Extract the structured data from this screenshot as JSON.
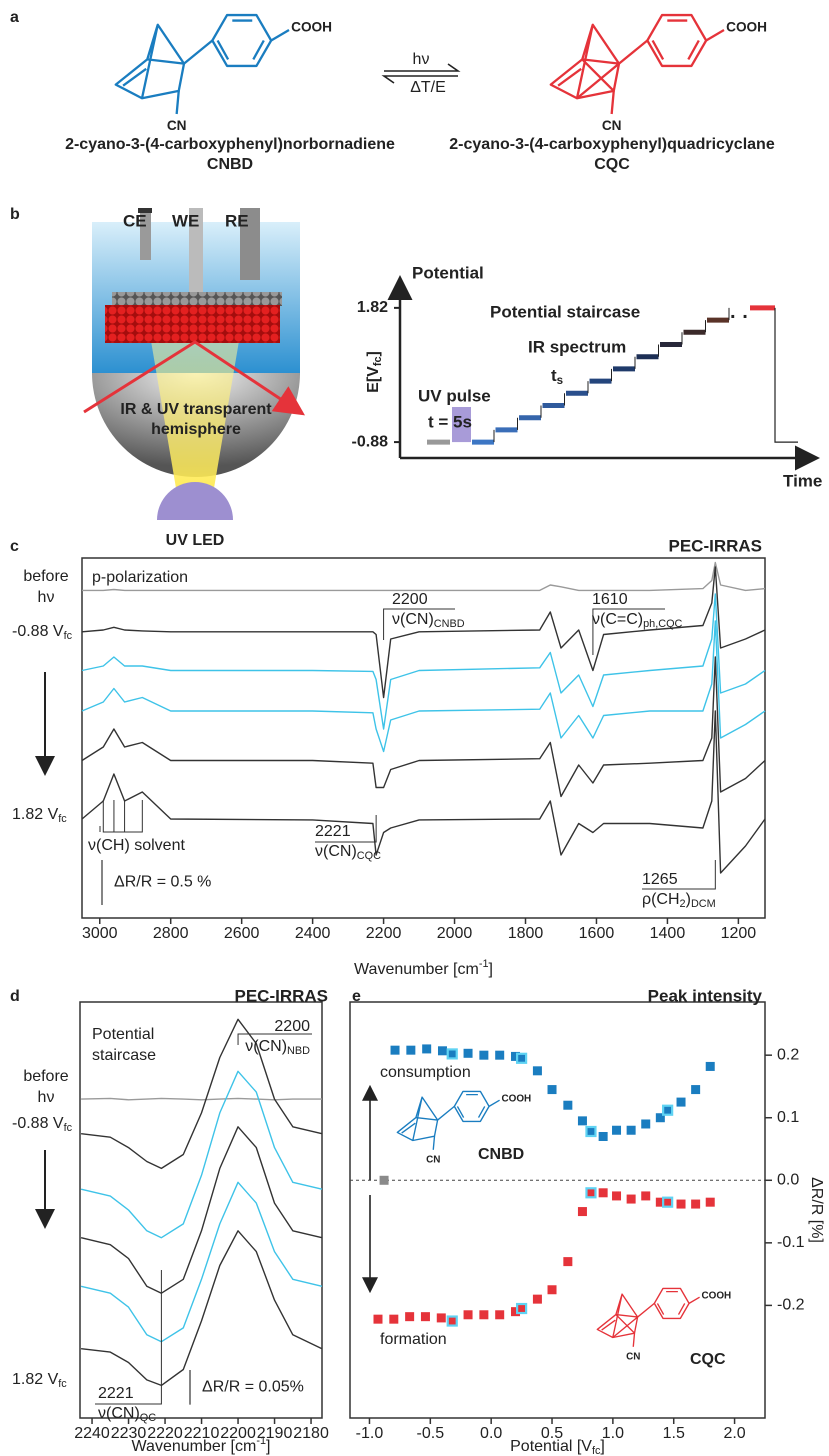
{
  "panel_a": {
    "label": "a",
    "left": {
      "cooh": "COOH",
      "cn": "CN",
      "name": "2-cyano-3-(4-carboxyphenyl)norbornadiene",
      "abbr": "CNBD"
    },
    "right": {
      "cooh": "COOH",
      "cn": "CN",
      "name": "2-cyano-3-(4-carboxyphenyl)quadricyclane",
      "abbr": "CQC"
    },
    "forward": "hν",
    "backward": "ΔT/E"
  },
  "panel_b": {
    "label": "b",
    "electrodes": [
      "CE",
      "WE",
      "RE"
    ],
    "hemisphere": [
      "IR & UV transparent",
      "hemisphere"
    ],
    "led": "UV LED"
  },
  "chart_data": [
    {
      "type": "staircase",
      "y_title": "Potential",
      "ylabel": [
        {
          "t": "E[V"
        },
        {
          "sub": "fc"
        },
        {
          "t": "]"
        }
      ],
      "xlabel": "Time",
      "ylim": [
        -1.2,
        2.28
      ],
      "yticks": [
        -0.88,
        1.82
      ],
      "annotations": {
        "staircase": "Potential staircase",
        "ir": "IR spectrum",
        "uv": "UV pulse",
        "duration": "t = 5s",
        "step": [
          {
            "t": "t"
          },
          {
            "sub": "s"
          }
        ]
      }
    },
    {
      "type": "line",
      "label": "c",
      "title": "PEC-IRRAS",
      "note": "p-polarization",
      "xlabel": [
        {
          "t": "Wavenumber [cm"
        },
        {
          "sup": "-1"
        },
        {
          "t": "]"
        }
      ],
      "x": [
        3050,
        2990,
        2960,
        2930,
        2880,
        2800,
        2400,
        2230,
        2221,
        2200,
        2180,
        2100,
        1760,
        1730,
        1700,
        1650,
        1610,
        1580,
        1450,
        1300,
        1275,
        1265,
        1250,
        1180,
        1125
      ],
      "xlim": [
        3050,
        1125
      ],
      "xticks": [
        3000,
        2800,
        2600,
        2400,
        2200,
        2000,
        1800,
        1600,
        1400,
        1200
      ],
      "ylim": [
        0,
        4
      ],
      "series": [
        {
          "color": "#9a9a9a",
          "values": [
            3.64,
            3.64,
            3.65,
            3.64,
            3.64,
            3.64,
            3.64,
            3.64,
            3.64,
            3.64,
            3.64,
            3.64,
            3.64,
            3.7,
            3.68,
            3.64,
            3.64,
            3.64,
            3.64,
            3.66,
            3.75,
            3.95,
            3.7,
            3.64,
            3.66
          ]
        },
        {
          "color": "#333333",
          "values": [
            3.18,
            3.2,
            3.23,
            3.2,
            3.19,
            3.18,
            3.18,
            3.18,
            3.15,
            2.45,
            3.1,
            3.18,
            3.2,
            3.4,
            3.0,
            3.2,
            2.75,
            3.15,
            3.2,
            3.25,
            3.5,
            3.9,
            3.0,
            3.1,
            3.2
          ]
        },
        {
          "color": "#3ec3e8",
          "values": [
            2.75,
            2.8,
            2.9,
            2.8,
            2.8,
            2.75,
            2.75,
            2.74,
            2.65,
            2.1,
            2.65,
            2.75,
            2.78,
            2.95,
            2.5,
            2.7,
            2.35,
            2.7,
            2.75,
            2.8,
            3.1,
            3.6,
            2.5,
            2.6,
            2.75
          ]
        },
        {
          "color": "#3ec3e8",
          "values": [
            2.3,
            2.4,
            2.55,
            2.4,
            2.45,
            2.3,
            2.3,
            2.28,
            2.1,
            1.85,
            2.2,
            2.3,
            2.32,
            2.5,
            2.0,
            2.25,
            2.0,
            2.25,
            2.3,
            2.3,
            2.6,
            3.3,
            2.0,
            2.15,
            2.3
          ]
        },
        {
          "color": "#333333",
          "values": [
            1.75,
            1.9,
            2.1,
            1.9,
            1.95,
            1.75,
            1.75,
            1.72,
            1.45,
            1.45,
            1.65,
            1.75,
            1.77,
            1.95,
            1.35,
            1.7,
            1.5,
            1.7,
            1.72,
            1.75,
            2.0,
            2.9,
            1.4,
            1.55,
            1.75
          ]
        },
        {
          "color": "#333333",
          "values": [
            1.1,
            1.3,
            1.6,
            1.3,
            1.4,
            1.1,
            1.09,
            1.05,
            0.7,
            0.95,
            1.0,
            1.09,
            1.1,
            1.3,
            0.7,
            1.05,
            0.95,
            1.05,
            1.05,
            1.0,
            1.3,
            2.3,
            0.5,
            0.8,
            1.1
          ]
        }
      ],
      "trace_labels": {
        "before": [
          "before",
          "hν"
        ],
        "start": [
          {
            "t": "-0.88 V"
          },
          {
            "sub": "fc"
          }
        ],
        "end": [
          {
            "t": "1.82 V"
          },
          {
            "sub": "fc"
          }
        ]
      },
      "peaks": [
        {
          "x": 2200,
          "text": [
            {
              "t": "ν(CN)"
            },
            {
              "sub": "CNBD"
            }
          ]
        },
        {
          "x": 1610,
          "text": [
            {
              "t": "ν(C=C)"
            },
            {
              "sub": "ph,CQC"
            }
          ]
        },
        {
          "x": 2221,
          "text": [
            {
              "t": "ν(CN)"
            },
            {
              "sub": "CQC"
            }
          ]
        },
        {
          "x": 1265,
          "text": [
            {
              "t": "ρ(CH"
            },
            {
              "sub": "2"
            },
            {
              "t": ")"
            },
            {
              "sub": "DCM"
            }
          ]
        }
      ],
      "solvent": "ν(CH) solvent",
      "scale_bar": {
        "value": 0.5,
        "label": "ΔR/R = 0.5 %"
      }
    },
    {
      "type": "line",
      "label": "d",
      "title": "PEC-IRRAS",
      "note": [
        "Potential",
        "staircase"
      ],
      "xlabel": [
        {
          "t": "Wavenumber [cm"
        },
        {
          "sup": "-1"
        },
        {
          "t": "]"
        }
      ],
      "x": [
        2243,
        2235,
        2230,
        2225,
        2221,
        2215,
        2210,
        2205,
        2200,
        2195,
        2190,
        2185,
        2177
      ],
      "xlim": [
        2243.3,
        2177
      ],
      "xticks": [
        2240,
        2230,
        2220,
        2210,
        2200,
        2190,
        2180
      ],
      "ylim": [
        0,
        0.6
      ],
      "series": [
        {
          "color": "#9a9a9a",
          "values": [
            0.46,
            0.461,
            0.459,
            0.46,
            0.461,
            0.46,
            0.459,
            0.46,
            0.461,
            0.46,
            0.459,
            0.46,
            0.46
          ]
        },
        {
          "color": "#333333",
          "values": [
            0.41,
            0.405,
            0.39,
            0.37,
            0.36,
            0.38,
            0.44,
            0.52,
            0.575,
            0.54,
            0.46,
            0.42,
            0.41
          ]
        },
        {
          "color": "#3ec3e8",
          "values": [
            0.33,
            0.32,
            0.3,
            0.27,
            0.26,
            0.28,
            0.35,
            0.44,
            0.5,
            0.47,
            0.39,
            0.34,
            0.33
          ]
        },
        {
          "color": "#333333",
          "values": [
            0.26,
            0.25,
            0.23,
            0.19,
            0.18,
            0.2,
            0.27,
            0.36,
            0.42,
            0.39,
            0.31,
            0.27,
            0.26
          ]
        },
        {
          "color": "#3ec3e8",
          "values": [
            0.19,
            0.18,
            0.16,
            0.12,
            0.11,
            0.13,
            0.2,
            0.28,
            0.34,
            0.31,
            0.24,
            0.2,
            0.19
          ]
        },
        {
          "color": "#333333",
          "values": [
            0.1,
            0.095,
            0.08,
            0.055,
            0.047,
            0.07,
            0.14,
            0.22,
            0.27,
            0.24,
            0.17,
            0.12,
            0.1
          ]
        }
      ],
      "trace_labels": {
        "before": [
          "before",
          "hν"
        ],
        "start": [
          {
            "t": "-0.88 V"
          },
          {
            "sub": "fc"
          }
        ],
        "end": [
          {
            "t": "1.82 V"
          },
          {
            "sub": "fc"
          }
        ]
      },
      "peaks": [
        {
          "x": 2200,
          "text": [
            {
              "t": "ν(CN)"
            },
            {
              "sub": "NBD"
            }
          ]
        },
        {
          "x": 2221,
          "text": [
            {
              "t": "ν(CN)"
            },
            {
              "sub": "QC"
            }
          ]
        }
      ],
      "scale_bar": {
        "value": 0.05,
        "label": "ΔR/R = 0.05%"
      }
    },
    {
      "type": "scatter",
      "label": "e",
      "title": "Peak intensity",
      "xlabel": [
        {
          "t": "Potential [V"
        },
        {
          "sub": "fc"
        },
        {
          "t": "]"
        }
      ],
      "ylabel": "ΔR/R [%]",
      "xlim": [
        -1.16,
        2.25
      ],
      "xticks": [
        {
          "value": -1,
          "label": "-1.0"
        },
        -0.5,
        {
          "value": 0,
          "label": "0.0"
        },
        0.5,
        {
          "value": 1,
          "label": "1.0"
        },
        1.5,
        {
          "value": 2,
          "label": "2.0"
        }
      ],
      "ylim": [
        -0.38,
        0.285
      ],
      "yticks": [
        -0.2,
        -0.1,
        {
          "value": 0,
          "label": "0.0"
        },
        0.1,
        0.2
      ],
      "y_axis_side": "right",
      "zero_line": true,
      "series": [
        {
          "name": "CNBD",
          "color": "#1a7dc0",
          "highlight": [
            4,
            9,
            14,
            20
          ],
          "x": [
            -0.79,
            -0.66,
            -0.53,
            -0.4,
            -0.32,
            -0.19,
            -0.06,
            0.07,
            0.2,
            0.25,
            0.38,
            0.5,
            0.63,
            0.75,
            0.82,
            0.92,
            1.03,
            1.15,
            1.27,
            1.39,
            1.45,
            1.56,
            1.68,
            1.8
          ],
          "values": [
            0.208,
            0.208,
            0.21,
            0.207,
            0.202,
            0.203,
            0.2,
            0.2,
            0.198,
            0.195,
            0.175,
            0.145,
            0.12,
            0.095,
            0.078,
            0.07,
            0.08,
            0.08,
            0.09,
            0.1,
            0.112,
            0.125,
            0.145,
            0.182
          ]
        },
        {
          "name": "CQC",
          "color": "#e5333a",
          "highlight": [
            5,
            10,
            15,
            21
          ],
          "x": [
            -0.93,
            -0.8,
            -0.67,
            -0.54,
            -0.41,
            -0.32,
            -0.19,
            -0.06,
            0.07,
            0.2,
            0.25,
            0.38,
            0.5,
            0.63,
            0.75,
            0.82,
            0.92,
            1.03,
            1.15,
            1.27,
            1.39,
            1.45,
            1.56,
            1.68,
            1.8
          ],
          "values": [
            -0.222,
            -0.222,
            -0.218,
            -0.218,
            -0.22,
            -0.225,
            -0.215,
            -0.215,
            -0.215,
            -0.21,
            -0.205,
            -0.19,
            -0.175,
            -0.13,
            -0.05,
            -0.02,
            -0.02,
            -0.025,
            -0.03,
            -0.025,
            -0.035,
            -0.035,
            -0.038,
            -0.038,
            -0.035
          ]
        },
        {
          "color": "#8a8a8a",
          "x": [
            -0.88
          ],
          "values": [
            0.0
          ]
        }
      ],
      "annotations": {
        "up": "consumption",
        "down": "formation"
      },
      "molecules": {
        "cooh": "COOH",
        "cn": "CN"
      }
    }
  ]
}
